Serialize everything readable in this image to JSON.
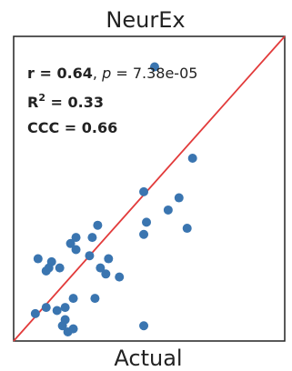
{
  "chart_data": {
    "type": "scatter",
    "title": "NeurEx",
    "xlabel": "Actual",
    "ylabel": "",
    "xlim": [
      0,
      10
    ],
    "ylim": [
      0,
      10
    ],
    "grid": false,
    "reference_line": "y = x",
    "colors": {
      "points": "#3a75b0",
      "line": "#e23b3b",
      "frame": "#222222"
    },
    "annotations": {
      "r_label": "r",
      "r_value": "0.64",
      "p_label": "p",
      "p_value": "7.38e-05",
      "r2_label": "R",
      "r2_sup": "2",
      "r2_value": "0.33",
      "ccc_label": "CCC",
      "ccc_value": "0.66"
    },
    "points": [
      {
        "x": 5.2,
        "y": 9.0
      },
      {
        "x": 6.6,
        "y": 6.0
      },
      {
        "x": 4.8,
        "y": 4.9
      },
      {
        "x": 6.1,
        "y": 4.7
      },
      {
        "x": 5.7,
        "y": 4.3
      },
      {
        "x": 4.9,
        "y": 3.9
      },
      {
        "x": 6.4,
        "y": 3.7
      },
      {
        "x": 4.8,
        "y": 3.5
      },
      {
        "x": 3.1,
        "y": 3.8
      },
      {
        "x": 2.9,
        "y": 3.4
      },
      {
        "x": 2.3,
        "y": 3.4
      },
      {
        "x": 2.1,
        "y": 3.2
      },
      {
        "x": 2.3,
        "y": 3.0
      },
      {
        "x": 2.8,
        "y": 2.8
      },
      {
        "x": 3.5,
        "y": 2.7
      },
      {
        "x": 3.2,
        "y": 2.4
      },
      {
        "x": 0.9,
        "y": 2.7
      },
      {
        "x": 1.4,
        "y": 2.6
      },
      {
        "x": 1.3,
        "y": 2.4
      },
      {
        "x": 1.2,
        "y": 2.3
      },
      {
        "x": 1.7,
        "y": 2.4
      },
      {
        "x": 3.4,
        "y": 2.2
      },
      {
        "x": 3.9,
        "y": 2.1
      },
      {
        "x": 2.2,
        "y": 1.4
      },
      {
        "x": 3.0,
        "y": 1.4
      },
      {
        "x": 1.2,
        "y": 1.1
      },
      {
        "x": 1.6,
        "y": 1.0
      },
      {
        "x": 1.9,
        "y": 1.1
      },
      {
        "x": 0.8,
        "y": 0.9
      },
      {
        "x": 1.9,
        "y": 0.7
      },
      {
        "x": 1.8,
        "y": 0.5
      },
      {
        "x": 2.2,
        "y": 0.4
      },
      {
        "x": 2.0,
        "y": 0.3
      },
      {
        "x": 4.8,
        "y": 0.5
      }
    ]
  }
}
